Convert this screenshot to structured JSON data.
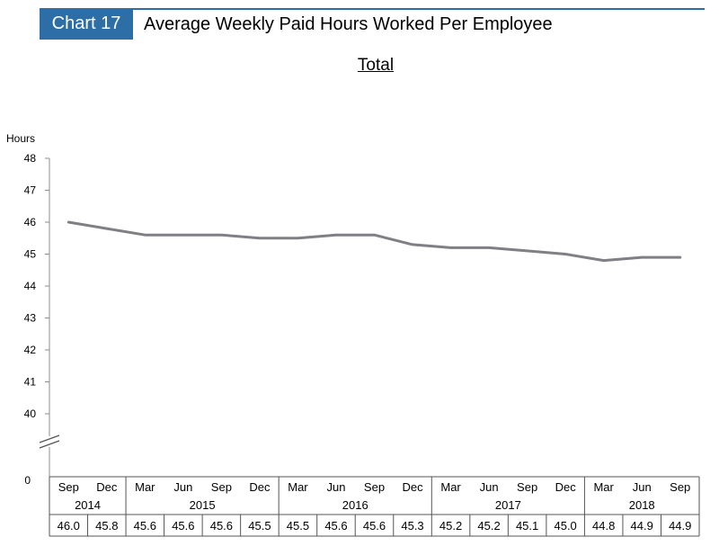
{
  "header": {
    "badge": "Chart 17",
    "title": "Average Weekly Paid Hours Worked Per Employee"
  },
  "colors": {
    "accent": "#2e6ea6",
    "line": "#7f7f85",
    "axis": "#8c8c8c"
  },
  "chart_data": {
    "type": "line",
    "title": "Average Weekly Paid Hours Worked Per Employee",
    "subtitle": "Total",
    "ylabel": "Hours",
    "xlabel": "",
    "ylim": [
      40,
      48
    ],
    "y_break": true,
    "y_ticks": [
      48,
      47,
      46,
      45,
      44,
      43,
      42,
      41,
      40
    ],
    "y_zero_label": "0",
    "grid": false,
    "legend": "none",
    "x": [
      "Sep",
      "Dec",
      "Mar",
      "Jun",
      "Sep",
      "Dec",
      "Mar",
      "Jun",
      "Sep",
      "Dec",
      "Mar",
      "Jun",
      "Sep",
      "Dec",
      "Mar",
      "Jun",
      "Sep"
    ],
    "years": [
      {
        "label": "2014",
        "span": 2
      },
      {
        "label": "2015",
        "span": 4
      },
      {
        "label": "2016",
        "span": 4
      },
      {
        "label": "2017",
        "span": 4
      },
      {
        "label": "2018",
        "span": 3
      }
    ],
    "series": [
      {
        "values": [
          46.0,
          45.8,
          45.6,
          45.6,
          45.6,
          45.5,
          45.5,
          45.6,
          45.6,
          45.3,
          45.2,
          45.2,
          45.1,
          45.0,
          44.8,
          44.9,
          44.9
        ],
        "labels": [
          "46.0",
          "45.8",
          "45.6",
          "45.6",
          "45.6",
          "45.5",
          "45.5",
          "45.6",
          "45.6",
          "45.3",
          "45.2",
          "45.2",
          "45.1",
          "45.0",
          "44.8",
          "44.9",
          "44.9"
        ]
      }
    ]
  }
}
